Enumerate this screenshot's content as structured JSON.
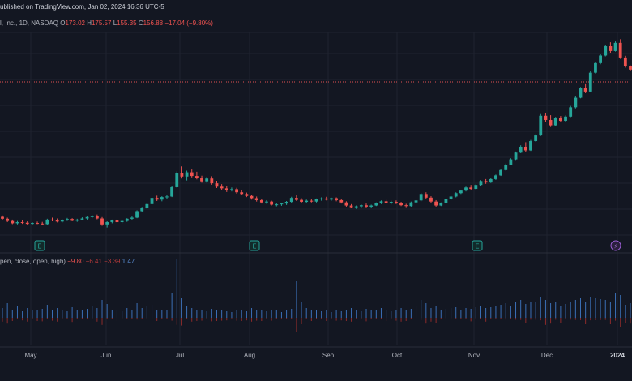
{
  "header": {
    "published": "ublished on TradingView.com, Jan 02, 2024 16:36 UTC-5",
    "symbol": "l, Inc., 1D, NASDAQ",
    "open_label": "O",
    "open": "173.02",
    "high_label": "H",
    "high": "175.57",
    "low_label": "L",
    "low": "155.35",
    "close_label": "C",
    "close": "156.88",
    "change": "−17.04 (−9.80%)"
  },
  "indicator": {
    "label": "pen, close, open, high)",
    "v1": "−9.80",
    "v2": "−6.41",
    "v3": "−3.39",
    "v4": "1.47"
  },
  "events": [
    "E",
    "E",
    "E",
    "⚡"
  ],
  "colors": {
    "background": "#131722",
    "up": "#26a69a",
    "down": "#ef5350",
    "grid": "#1f2330",
    "volume_up": "#3b6fb6",
    "volume_down": "#8b2b2b"
  },
  "chart_data": {
    "type": "candlestick",
    "x_tick_labels": [
      "May",
      "Jun",
      "Jul",
      "Aug",
      "Sep",
      "Oct",
      "Nov",
      "Dec",
      "2024"
    ],
    "candles": [
      [
        92.5,
        93.0,
        91.2,
        91.8
      ],
      [
        91.8,
        92.2,
        90.6,
        91.0
      ],
      [
        91.0,
        91.5,
        89.9,
        90.2
      ],
      [
        90.2,
        91.0,
        89.8,
        90.6
      ],
      [
        90.6,
        91.2,
        90.0,
        90.4
      ],
      [
        90.4,
        90.9,
        89.7,
        90.0
      ],
      [
        90.0,
        90.6,
        89.5,
        90.3
      ],
      [
        90.3,
        90.8,
        89.9,
        90.1
      ],
      [
        90.1,
        90.7,
        89.6,
        89.9
      ],
      [
        89.9,
        91.8,
        89.7,
        91.5
      ],
      [
        91.5,
        92.2,
        90.9,
        91.3
      ],
      [
        91.3,
        91.9,
        90.5,
        90.8
      ],
      [
        90.8,
        91.6,
        90.5,
        91.4
      ],
      [
        91.4,
        92.1,
        91.0,
        91.7
      ],
      [
        91.7,
        92.0,
        90.9,
        91.1
      ],
      [
        91.1,
        91.8,
        90.7,
        91.5
      ],
      [
        91.5,
        92.3,
        91.2,
        91.9
      ],
      [
        91.9,
        92.6,
        91.5,
        92.4
      ],
      [
        92.4,
        93.1,
        92.0,
        92.8
      ],
      [
        92.8,
        93.3,
        91.6,
        91.9
      ],
      [
        91.9,
        92.4,
        89.3,
        89.8
      ],
      [
        89.8,
        90.9,
        88.7,
        90.6
      ],
      [
        90.6,
        91.5,
        90.2,
        91.2
      ],
      [
        91.2,
        91.7,
        90.3,
        90.6
      ],
      [
        90.6,
        91.4,
        90.2,
        91.0
      ],
      [
        91.0,
        92.0,
        90.7,
        91.8
      ],
      [
        91.8,
        92.6,
        91.4,
        92.2
      ],
      [
        92.2,
        94.8,
        92.0,
        94.5
      ],
      [
        94.5,
        96.0,
        94.2,
        95.7
      ],
      [
        95.7,
        97.5,
        95.3,
        97.0
      ],
      [
        97.0,
        99.5,
        96.7,
        99.2
      ],
      [
        99.2,
        100.0,
        98.1,
        98.6
      ],
      [
        98.6,
        99.8,
        98.0,
        99.5
      ],
      [
        99.5,
        100.3,
        98.8,
        99.7
      ],
      [
        99.7,
        103.5,
        99.5,
        103.0
      ],
      [
        103.0,
        108.6,
        102.8,
        108.1
      ],
      [
        108.1,
        110.4,
        106.1,
        106.8
      ],
      [
        106.8,
        108.9,
        105.4,
        108.3
      ],
      [
        108.3,
        109.3,
        106.5,
        107.0
      ],
      [
        107.0,
        108.5,
        105.8,
        106.2
      ],
      [
        106.2,
        107.1,
        104.6,
        105.1
      ],
      [
        105.1,
        106.7,
        104.6,
        106.1
      ],
      [
        106.1,
        106.9,
        103.9,
        104.4
      ],
      [
        104.4,
        105.3,
        102.7,
        103.2
      ],
      [
        103.2,
        104.1,
        101.9,
        102.6
      ],
      [
        102.6,
        103.3,
        101.3,
        101.9
      ],
      [
        101.9,
        102.9,
        101.5,
        102.3
      ],
      [
        102.3,
        102.8,
        100.7,
        101.2
      ],
      [
        101.2,
        102.0,
        100.2,
        100.6
      ],
      [
        100.6,
        101.1,
        99.5,
        99.9
      ],
      [
        99.9,
        100.4,
        98.6,
        99.1
      ],
      [
        99.1,
        99.7,
        97.9,
        98.4
      ],
      [
        98.4,
        98.9,
        97.2,
        97.6
      ],
      [
        97.6,
        98.4,
        97.1,
        97.9
      ],
      [
        97.9,
        98.2,
        96.5,
        96.8
      ],
      [
        96.8,
        97.3,
        96.2,
        96.9
      ],
      [
        96.9,
        97.5,
        96.4,
        97.2
      ],
      [
        97.2,
        98.1,
        96.7,
        97.8
      ],
      [
        97.8,
        99.6,
        97.5,
        99.2
      ],
      [
        99.2,
        100.1,
        98.1,
        98.5
      ],
      [
        98.5,
        99.1,
        97.4,
        97.8
      ],
      [
        97.8,
        98.6,
        97.3,
        98.2
      ],
      [
        98.2,
        98.7,
        97.6,
        97.9
      ],
      [
        97.9,
        99.0,
        97.6,
        98.7
      ],
      [
        98.7,
        99.4,
        98.2,
        99.0
      ],
      [
        99.0,
        99.6,
        98.3,
        98.6
      ],
      [
        98.6,
        99.3,
        98.2,
        99.1
      ],
      [
        99.1,
        99.4,
        98.0,
        98.4
      ],
      [
        98.4,
        98.9,
        97.2,
        97.6
      ],
      [
        97.6,
        98.0,
        96.1,
        96.5
      ],
      [
        96.5,
        97.0,
        95.5,
        95.9
      ],
      [
        95.9,
        96.5,
        95.3,
        96.2
      ],
      [
        96.2,
        96.9,
        95.7,
        96.6
      ],
      [
        96.6,
        97.2,
        95.8,
        96.1
      ],
      [
        96.1,
        96.8,
        95.7,
        96.5
      ],
      [
        96.5,
        97.6,
        96.3,
        97.3
      ],
      [
        97.3,
        98.3,
        97.0,
        98.0
      ],
      [
        98.0,
        98.5,
        97.2,
        97.5
      ],
      [
        97.5,
        98.2,
        96.9,
        97.8
      ],
      [
        97.8,
        98.3,
        97.0,
        97.3
      ],
      [
        97.3,
        97.8,
        96.3,
        96.6
      ],
      [
        96.6,
        97.1,
        95.9,
        96.3
      ],
      [
        96.3,
        97.9,
        96.1,
        97.6
      ],
      [
        97.6,
        98.6,
        97.3,
        98.3
      ],
      [
        98.3,
        101.0,
        98.0,
        100.6
      ],
      [
        100.6,
        101.2,
        98.9,
        99.3
      ],
      [
        99.3,
        99.8,
        97.5,
        97.9
      ],
      [
        97.9,
        98.4,
        96.1,
        96.5
      ],
      [
        96.5,
        97.6,
        96.3,
        97.4
      ],
      [
        97.4,
        99.0,
        97.2,
        98.7
      ],
      [
        98.7,
        100.0,
        98.4,
        99.7
      ],
      [
        99.7,
        101.2,
        99.4,
        100.9
      ],
      [
        100.9,
        102.1,
        100.6,
        101.8
      ],
      [
        101.8,
        103.2,
        101.5,
        102.9
      ],
      [
        102.9,
        103.8,
        101.9,
        102.4
      ],
      [
        102.4,
        104.1,
        102.2,
        103.8
      ],
      [
        103.8,
        105.5,
        103.5,
        105.2
      ],
      [
        105.2,
        105.9,
        104.2,
        104.7
      ],
      [
        104.7,
        106.2,
        104.5,
        105.9
      ],
      [
        105.9,
        107.5,
        105.6,
        107.2
      ],
      [
        107.2,
        109.5,
        107.0,
        109.1
      ],
      [
        109.1,
        111.4,
        108.9,
        111.0
      ],
      [
        111.0,
        113.3,
        110.8,
        112.9
      ],
      [
        112.9,
        115.7,
        112.7,
        115.3
      ],
      [
        115.3,
        117.9,
        115.1,
        117.4
      ],
      [
        117.4,
        119.0,
        115.5,
        116.1
      ],
      [
        116.1,
        119.8,
        115.9,
        119.4
      ],
      [
        119.4,
        121.8,
        119.2,
        121.4
      ],
      [
        121.4,
        129.0,
        121.2,
        128.4
      ],
      [
        128.4,
        129.5,
        126.2,
        126.9
      ],
      [
        126.9,
        128.6,
        124.4,
        125.0
      ],
      [
        125.0,
        128.0,
        124.8,
        127.6
      ],
      [
        127.6,
        128.3,
        126.1,
        126.6
      ],
      [
        126.6,
        128.5,
        126.3,
        128.1
      ],
      [
        128.1,
        131.9,
        127.9,
        131.4
      ],
      [
        131.4,
        135.3,
        131.0,
        134.8
      ],
      [
        134.8,
        138.6,
        134.6,
        138.2
      ],
      [
        138.2,
        139.6,
        136.4,
        137.0
      ],
      [
        137.0,
        144.2,
        136.8,
        143.7
      ],
      [
        143.7,
        147.5,
        143.4,
        147.1
      ],
      [
        147.1,
        150.3,
        146.7,
        149.8
      ],
      [
        149.8,
        153.6,
        149.5,
        153.1
      ],
      [
        153.1,
        154.5,
        150.8,
        151.4
      ],
      [
        151.4,
        154.8,
        151.2,
        154.3
      ],
      [
        154.3,
        155.6,
        148.6,
        149.1
      ],
      [
        149.1,
        149.7,
        145.5,
        145.9
      ],
      [
        145.9,
        146.3,
        144.4,
        144.8
      ]
    ],
    "volume": [
      0.12,
      0.18,
      0.1,
      0.14,
      0.08,
      0.12,
      0.09,
      0.1,
      0.11,
      0.16,
      0.09,
      0.12,
      0.1,
      0.08,
      0.13,
      0.09,
      0.1,
      0.11,
      0.14,
      0.12,
      0.22,
      0.17,
      0.09,
      0.1,
      0.08,
      0.12,
      0.09,
      0.18,
      0.12,
      0.15,
      0.16,
      0.1,
      0.09,
      0.1,
      0.3,
      0.72,
      0.24,
      0.15,
      0.12,
      0.1,
      0.09,
      0.08,
      0.11,
      0.1,
      0.09,
      0.08,
      0.07,
      0.09,
      0.1,
      0.08,
      0.12,
      0.09,
      0.1,
      0.08,
      0.09,
      0.1,
      0.07,
      0.09,
      0.11,
      0.45,
      0.2,
      0.12,
      0.1,
      0.09,
      0.08,
      0.1,
      0.07,
      0.09,
      0.08,
      0.1,
      0.12,
      0.09,
      0.08,
      0.11,
      0.1,
      0.09,
      0.12,
      0.1,
      0.08,
      0.09,
      0.12,
      0.1,
      0.11,
      0.14,
      0.22,
      0.18,
      0.12,
      0.15,
      0.1,
      0.11,
      0.12,
      0.13,
      0.1,
      0.12,
      0.11,
      0.13,
      0.14,
      0.12,
      0.13,
      0.15,
      0.16,
      0.18,
      0.14,
      0.2,
      0.22,
      0.17,
      0.19,
      0.2,
      0.26,
      0.22,
      0.18,
      0.2,
      0.15,
      0.17,
      0.19,
      0.22,
      0.24,
      0.2,
      0.26,
      0.25,
      0.23,
      0.22,
      0.2,
      0.3,
      0.28,
      0.16,
      0.18
    ]
  }
}
